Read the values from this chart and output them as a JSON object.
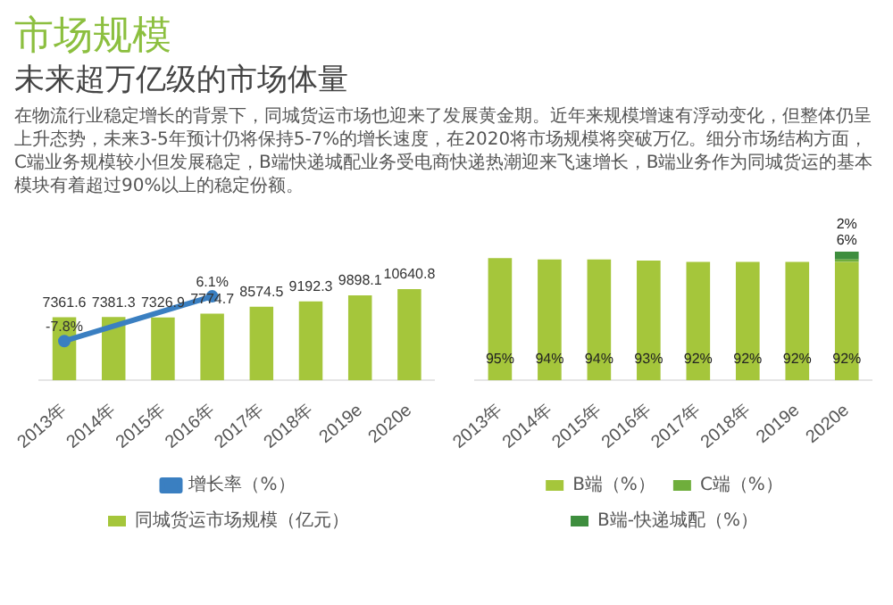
{
  "chart_data": [
    {
      "type": "bar",
      "title": "市场规模",
      "subtitle": "未来超万亿级的市场体量",
      "annotations": [
        "在物流行业稳定增长的背景下，同城货运市场也迎来了发展黄金期。近年来规模增速有浮动变化，但整体仍呈上升态势，未来3-5年预计仍将保持5-7%的增长速度，在2020将市场规模将突破万亿。细分市场结构方面，C端业务规模较小但发展稳定，B端快递城配业务受电商快递热潮迎来飞速增长，B端业务作为同城货运的基本模块有着超过90%以上的稳定份额。"
      ],
      "categories": [
        "2013年",
        "2014年",
        "2015年",
        "2016年",
        "2017年",
        "2018年",
        "2019e",
        "2020e"
      ],
      "series": [
        {
          "name": "同城货运市场规模（亿元）",
          "color": "#a5c63b",
          "values": [
            7361.6,
            7381.3,
            7326.9,
            7774.7,
            8574.5,
            9192.3,
            9898.1,
            10640.8
          ],
          "value_labels": [
            "7361.6",
            "7381.3",
            "7326.9",
            "7774.7",
            "8574.5",
            "9192.3",
            "9898.1",
            "10640.8"
          ]
        },
        {
          "name": "增长率（%）",
          "type": "line",
          "axis": "y2",
          "color": "#3a7fc1",
          "values": [
            -7.8,
            null,
            null,
            6.1,
            null,
            null,
            null,
            null
          ],
          "value_labels": [
            "-7.8%",
            null,
            null,
            "6.1%",
            null,
            null,
            null,
            null
          ]
        }
      ],
      "legend": "bottom",
      "tick_labels": "x",
      "grid": false,
      "marker": "circle"
    },
    {
      "type": "bar",
      "stacked": true,
      "categories": [
        "2013年",
        "2014年",
        "2015年",
        "2016年",
        "2017年",
        "2018年",
        "2019e",
        "2020e"
      ],
      "series": [
        {
          "name": "B端（%）",
          "color": "#a5c63b",
          "values": [
            95,
            94,
            94,
            93,
            92,
            92,
            92,
            92
          ],
          "value_labels": [
            "95%",
            "94%",
            "94%",
            "93%",
            "92%",
            "92%",
            "92%",
            "92%"
          ]
        },
        {
          "name": "C端（%）",
          "color": "#6fae3c",
          "values": [
            null,
            null,
            null,
            null,
            null,
            null,
            null,
            2
          ],
          "value_labels": [
            null,
            null,
            null,
            null,
            null,
            null,
            null,
            "2%"
          ]
        },
        {
          "name": "B端-快递城配（%）",
          "color": "#3e8e3e",
          "values": [
            null,
            null,
            null,
            null,
            null,
            null,
            null,
            6
          ],
          "value_labels": [
            null,
            null,
            null,
            null,
            null,
            null,
            null,
            "6%"
          ]
        }
      ],
      "legend": "bottom",
      "tick_labels": "x",
      "grid": false
    }
  ]
}
